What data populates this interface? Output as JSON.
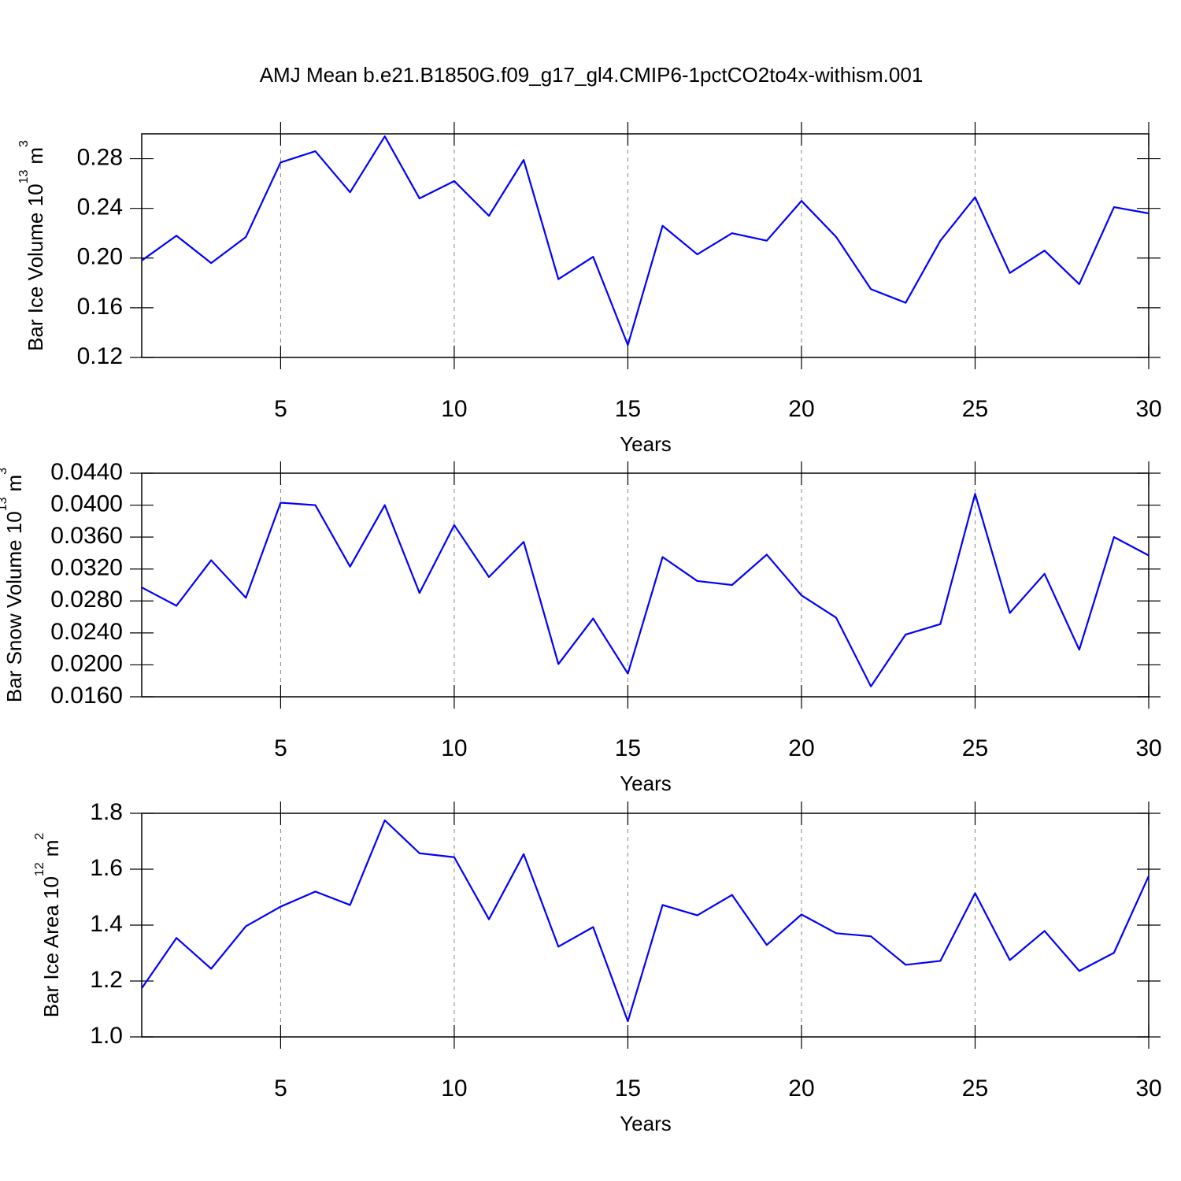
{
  "title": "AMJ Mean b.e21.B1850G.f09_g17_gl4.CMIP6-1pctCO2to4x-withism.001",
  "chart_data": [
    {
      "type": "line",
      "x": [
        1,
        2,
        3,
        4,
        5,
        6,
        7,
        8,
        9,
        10,
        11,
        12,
        13,
        14,
        15,
        16,
        17,
        18,
        19,
        20,
        21,
        22,
        23,
        24,
        25,
        26,
        27,
        28,
        29,
        30
      ],
      "xlabel": "Years",
      "ylabel": {
        "base": "Bar Ice Volume 10",
        "exponent": "13",
        "unit": "m",
        "unit_exponent": "3"
      },
      "series": [
        {
          "color": "#0000ff",
          "values": [
            0.198,
            0.218,
            0.196,
            0.217,
            0.277,
            0.286,
            0.253,
            0.298,
            0.248,
            0.262,
            0.234,
            0.279,
            0.183,
            0.201,
            0.13,
            0.226,
            0.203,
            0.22,
            0.214,
            0.246,
            0.217,
            0.175,
            0.164,
            0.214,
            0.249,
            0.188,
            0.206,
            0.179,
            0.241,
            0.236
          ]
        }
      ],
      "xlim": [
        1,
        30
      ],
      "xticks": [
        5,
        10,
        15,
        20,
        25,
        30
      ],
      "ylim": [
        0.12,
        0.3
      ],
      "yticks": [
        0.12,
        0.16,
        {
          "value": 0.2,
          "label": "0.20"
        },
        0.24,
        0.28
      ],
      "grid": "x"
    },
    {
      "type": "line",
      "x": [
        1,
        2,
        3,
        4,
        5,
        6,
        7,
        8,
        9,
        10,
        11,
        12,
        13,
        14,
        15,
        16,
        17,
        18,
        19,
        20,
        21,
        22,
        23,
        24,
        25,
        26,
        27,
        28,
        29,
        30
      ],
      "xlabel": "Years",
      "ylabel": {
        "base": "Bar Snow Volume 10",
        "exponent": "13",
        "unit": "m",
        "unit_exponent": "3"
      },
      "series": [
        {
          "color": "#0000ff",
          "values": [
            0.0297,
            0.0274,
            0.0331,
            0.0284,
            0.0403,
            0.04,
            0.0323,
            0.04,
            0.029,
            0.0375,
            0.031,
            0.0354,
            0.0201,
            0.0258,
            0.0189,
            0.0335,
            0.0305,
            0.03,
            0.0338,
            0.0287,
            0.0259,
            0.0173,
            0.0238,
            0.0251,
            0.0414,
            0.0265,
            0.0314,
            0.0219,
            0.036,
            0.0337
          ]
        }
      ],
      "xlim": [
        1,
        30
      ],
      "xticks": [
        5,
        10,
        15,
        20,
        25,
        30
      ],
      "ylim": [
        0.016,
        0.044
      ],
      "yticks": [
        {
          "value": 0.016,
          "label": "0.0160"
        },
        {
          "value": 0.02,
          "label": "0.0200"
        },
        {
          "value": 0.024,
          "label": "0.0240"
        },
        {
          "value": 0.028,
          "label": "0.0280"
        },
        {
          "value": 0.032,
          "label": "0.0320"
        },
        {
          "value": 0.036,
          "label": "0.0360"
        },
        {
          "value": 0.04,
          "label": "0.0400"
        },
        {
          "value": 0.044,
          "label": "0.0440"
        }
      ],
      "grid": "x"
    },
    {
      "type": "line",
      "x": [
        1,
        2,
        3,
        4,
        5,
        6,
        7,
        8,
        9,
        10,
        11,
        12,
        13,
        14,
        15,
        16,
        17,
        18,
        19,
        20,
        21,
        22,
        23,
        24,
        25,
        26,
        27,
        28,
        29,
        30
      ],
      "xlabel": "Years",
      "ylabel": {
        "base": "Bar Ice Area 10",
        "exponent": "12",
        "unit": "m",
        "unit_exponent": "2"
      },
      "series": [
        {
          "color": "#0000ff",
          "values": [
            1.174,
            1.354,
            1.244,
            1.396,
            1.466,
            1.52,
            1.472,
            1.775,
            1.657,
            1.643,
            1.421,
            1.654,
            1.323,
            1.393,
            1.056,
            1.472,
            1.435,
            1.508,
            1.329,
            1.438,
            1.371,
            1.36,
            1.258,
            1.272,
            1.514,
            1.275,
            1.379,
            1.236,
            1.301,
            1.576
          ]
        }
      ],
      "xlim": [
        1,
        30
      ],
      "xticks": [
        5,
        10,
        15,
        20,
        25,
        30
      ],
      "ylim": [
        1.0,
        1.8
      ],
      "yticks": [
        {
          "value": 1.0,
          "label": "1.0"
        },
        1.2,
        1.4,
        1.6,
        1.8
      ],
      "grid": "x"
    }
  ]
}
